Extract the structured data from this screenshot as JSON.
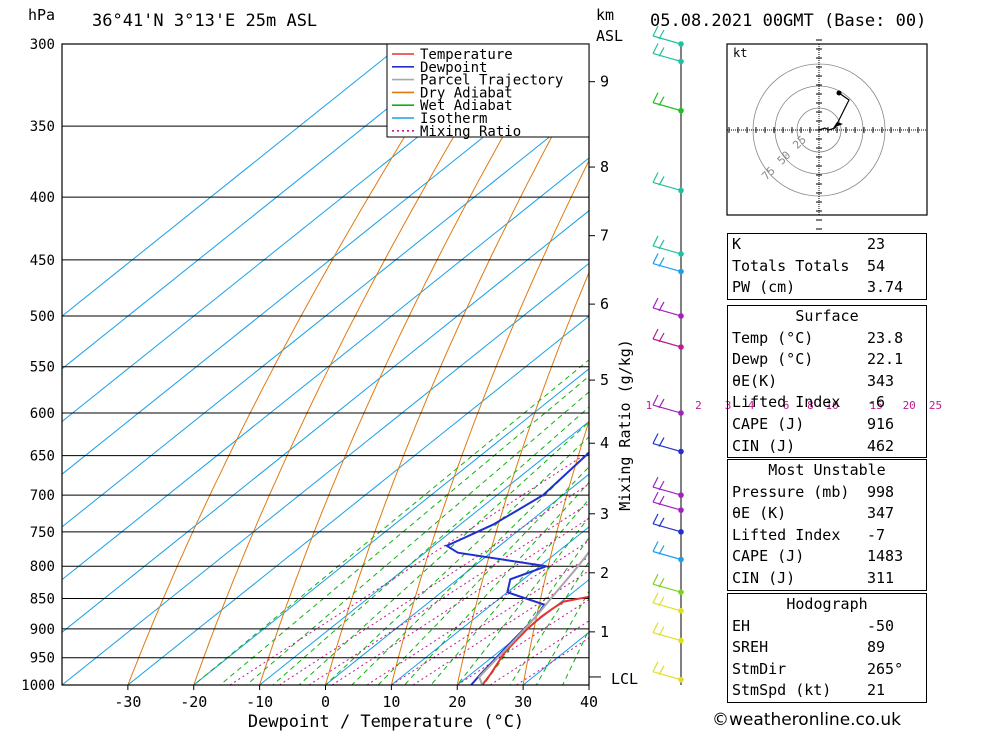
{
  "header": {
    "location": "36°41'N  3°13'E  25m  ASL",
    "run": "05.08.2021  00GMT  (Base: 00)",
    "hpa_label": "hPa",
    "km_label": "km",
    "asl_label": "ASL",
    "lcl_label": "LCL",
    "mixing_ratio_axis": "Mixing Ratio (g/kg)",
    "x_axis": "Dewpoint / Temperature (°C)",
    "hodo_unit": "kt"
  },
  "colors": {
    "temperature": "#e83030",
    "dewpoint": "#2030d0",
    "parcel": "#a8a8a8",
    "dry_adiabat": "#e07a10",
    "wet_adiabat": "#10b010",
    "isotherm": "#1aa0e8",
    "mixing_ratio": "#c01890"
  },
  "legend": [
    {
      "label": "Temperature",
      "color": "#e83030",
      "dash": ""
    },
    {
      "label": "Dewpoint",
      "color": "#2030d0",
      "dash": ""
    },
    {
      "label": "Parcel Trajectory",
      "color": "#a8a8a8",
      "dash": ""
    },
    {
      "label": "Dry Adiabat",
      "color": "#e07a10",
      "dash": ""
    },
    {
      "label": "Wet Adiabat",
      "color": "#10b010",
      "dash": ""
    },
    {
      "label": "Isotherm",
      "color": "#1aa0e8",
      "dash": ""
    },
    {
      "label": "Mixing Ratio",
      "color": "#c01890",
      "dash": "2,3"
    }
  ],
  "chart_data": {
    "type": "line",
    "pressure_ticks": [
      300,
      350,
      400,
      450,
      500,
      550,
      600,
      650,
      700,
      750,
      800,
      850,
      900,
      950,
      1000
    ],
    "temp_ticks": [
      -30,
      -20,
      -10,
      0,
      10,
      20,
      30,
      40
    ],
    "km_ticks": [
      {
        "label": "9",
        "p": 322
      },
      {
        "label": "8",
        "p": 378
      },
      {
        "label": "7",
        "p": 430
      },
      {
        "label": "6",
        "p": 489
      },
      {
        "label": "5",
        "p": 564
      },
      {
        "label": "4",
        "p": 635
      },
      {
        "label": "3",
        "p": 725
      },
      {
        "label": "2",
        "p": 810
      },
      {
        "label": "1",
        "p": 905
      }
    ],
    "lcl_p": 985,
    "mixing_ratios": [
      "1",
      "2",
      "3",
      "4",
      "6",
      "8",
      "10",
      "15",
      "20",
      "25"
    ],
    "series": [
      {
        "name": "Temperature",
        "points": [
          [
            1000,
            23.8
          ],
          [
            980,
            23
          ],
          [
            960,
            22
          ],
          [
            940,
            21
          ],
          [
            920,
            20.5
          ],
          [
            900,
            20
          ],
          [
            880,
            19.8
          ],
          [
            865,
            20
          ],
          [
            855,
            20.3
          ],
          [
            848,
            23
          ],
          [
            840,
            26.5
          ],
          [
            830,
            28.5
          ],
          [
            815,
            29
          ],
          [
            800,
            28.5
          ],
          [
            790,
            28.5
          ],
          [
            770,
            30
          ],
          [
            760,
            30.5
          ],
          [
            740,
            29
          ],
          [
            720,
            27
          ],
          [
            700,
            25
          ],
          [
            650,
            19
          ],
          [
            600,
            13
          ],
          [
            550,
            6
          ],
          [
            500,
            -1
          ],
          [
            480,
            -2
          ],
          [
            470,
            -2
          ],
          [
            460,
            -1
          ],
          [
            450,
            -1.5
          ],
          [
            440,
            -2
          ],
          [
            425,
            -4.5
          ],
          [
            400,
            -9
          ],
          [
            380,
            -13
          ],
          [
            350,
            -20
          ],
          [
            320,
            -26
          ],
          [
            300,
            -30
          ]
        ]
      },
      {
        "name": "Dewpoint",
        "points": [
          [
            1000,
            22.1
          ],
          [
            980,
            21.5
          ],
          [
            960,
            21
          ],
          [
            940,
            20.5
          ],
          [
            920,
            20
          ],
          [
            900,
            19.5
          ],
          [
            880,
            19
          ],
          [
            860,
            18
          ],
          [
            850,
            14
          ],
          [
            840,
            10
          ],
          [
            820,
            8
          ],
          [
            800,
            11
          ],
          [
            780,
            -5
          ],
          [
            770,
            -8
          ],
          [
            760,
            -7
          ],
          [
            750,
            -6
          ],
          [
            740,
            -5
          ],
          [
            720,
            -4
          ],
          [
            700,
            -3
          ],
          [
            650,
            -4
          ],
          [
            600,
            -5
          ],
          [
            550,
            -5
          ],
          [
            500,
            -6
          ],
          [
            490,
            -7
          ],
          [
            480,
            -12
          ],
          [
            470,
            -5
          ],
          [
            460,
            -19
          ],
          [
            450,
            -25
          ],
          [
            440,
            -27
          ],
          [
            430,
            -28
          ],
          [
            420,
            -25
          ],
          [
            400,
            -20
          ],
          [
            380,
            -17
          ],
          [
            360,
            -15
          ],
          [
            350,
            -13
          ],
          [
            340,
            -8
          ],
          [
            330,
            -16
          ],
          [
            320,
            -15
          ],
          [
            310,
            -12
          ],
          [
            305,
            -13
          ],
          [
            300,
            -20
          ]
        ]
      },
      {
        "name": "Parcel Trajectory",
        "points": [
          [
            1000,
            23.8
          ],
          [
            985,
            21.8
          ],
          [
            960,
            21.2
          ],
          [
            920,
            20.2
          ],
          [
            880,
            19
          ],
          [
            850,
            17.8
          ],
          [
            800,
            15.8
          ],
          [
            750,
            13.3
          ],
          [
            700,
            10.5
          ],
          [
            650,
            7.5
          ],
          [
            600,
            4
          ],
          [
            550,
            0
          ],
          [
            500,
            -4.5
          ],
          [
            450,
            -10
          ],
          [
            400,
            -16
          ],
          [
            370,
            -21
          ],
          [
            350,
            -24.5
          ],
          [
            320,
            -31
          ],
          [
            300,
            -35
          ]
        ]
      }
    ],
    "xlim": [
      -40,
      40
    ],
    "ylim": [
      1000,
      300
    ],
    "xlabel": "Dewpoint / Temperature (°C)",
    "ylabel": "hPa"
  },
  "wind_profile": [
    {
      "p": 300,
      "color": "#20c0a0"
    },
    {
      "p": 310,
      "color": "#20c0a0"
    },
    {
      "p": 340,
      "color": "#20c020"
    },
    {
      "p": 395,
      "color": "#20c0a0"
    },
    {
      "p": 445,
      "color": "#20c0a0"
    },
    {
      "p": 460,
      "color": "#1aa0e8"
    },
    {
      "p": 500,
      "color": "#a020c0"
    },
    {
      "p": 530,
      "color": "#c01890"
    },
    {
      "p": 600,
      "color": "#a020c0"
    },
    {
      "p": 645,
      "color": "#2030d0"
    },
    {
      "p": 700,
      "color": "#a020c0"
    },
    {
      "p": 720,
      "color": "#a020c0"
    },
    {
      "p": 750,
      "color": "#2030d0"
    },
    {
      "p": 790,
      "color": "#1aa0e8"
    },
    {
      "p": 840,
      "color": "#80d020"
    },
    {
      "p": 870,
      "color": "#e0e020"
    },
    {
      "p": 920,
      "color": "#e0e020"
    },
    {
      "p": 990,
      "color": "#e0e020"
    }
  ],
  "hodograph": {
    "rings": [
      "25",
      "50",
      "75"
    ]
  },
  "indices": {
    "top": [
      {
        "label": "K",
        "value": "23"
      },
      {
        "label": "Totals Totals",
        "value": "54"
      },
      {
        "label": "PW (cm)",
        "value": "3.74"
      }
    ],
    "surface_title": "Surface",
    "surface": [
      {
        "label": "Temp (°C)",
        "value": "23.8"
      },
      {
        "label": "Dewp (°C)",
        "value": "22.1"
      },
      {
        "label": "θE(K)",
        "value": "343"
      },
      {
        "label": "Lifted Index",
        "value": "-6"
      },
      {
        "label": "CAPE (J)",
        "value": "916"
      },
      {
        "label": "CIN (J)",
        "value": "462"
      }
    ],
    "mu_title": "Most Unstable",
    "mu": [
      {
        "label": "Pressure (mb)",
        "value": "998"
      },
      {
        "label": "θE (K)",
        "value": "347"
      },
      {
        "label": "Lifted Index",
        "value": "-7"
      },
      {
        "label": "CAPE (J)",
        "value": "1483"
      },
      {
        "label": "CIN (J)",
        "value": "311"
      }
    ],
    "hodo_title": "Hodograph",
    "hodo": [
      {
        "label": "EH",
        "value": "-50"
      },
      {
        "label": "SREH",
        "value": "89"
      },
      {
        "label": "StmDir",
        "value": "265°"
      },
      {
        "label": "StmSpd (kt)",
        "value": "21"
      }
    ]
  },
  "footer": "©weatheronline.co.uk"
}
